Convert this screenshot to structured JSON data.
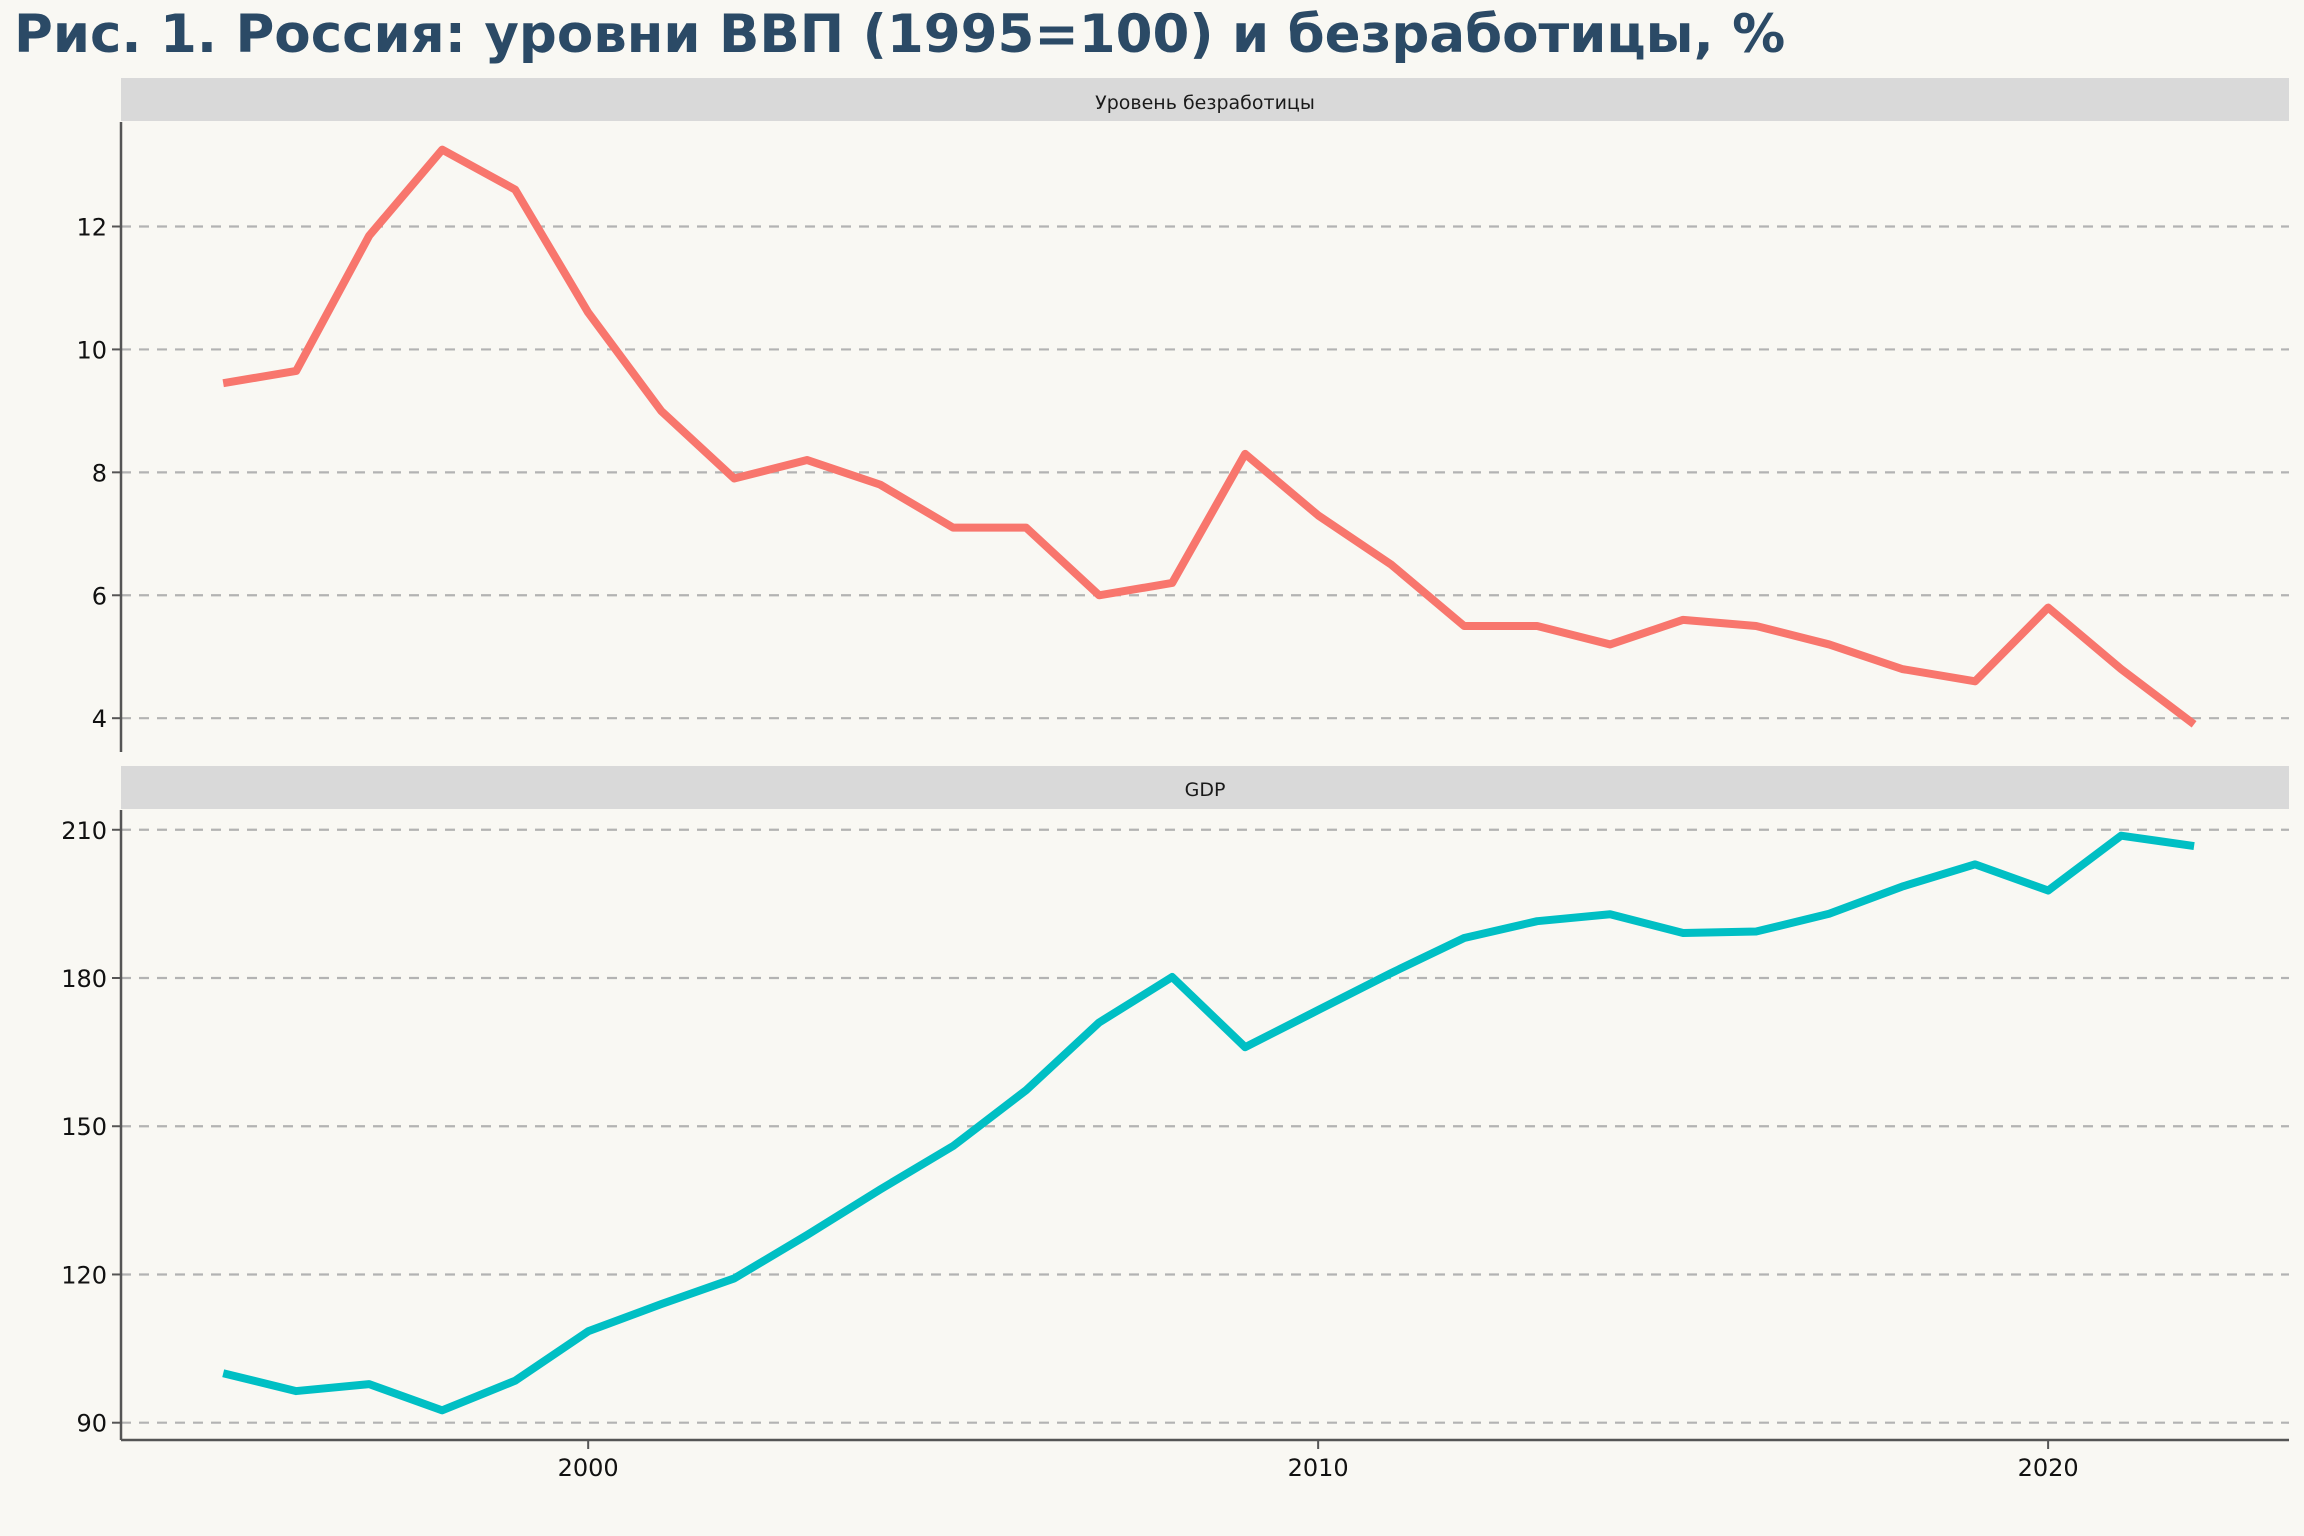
{
  "chart_data": {
    "type": "line",
    "title": "Рис. 1. Россия: уровни ВВП (1995=100) и безработицы, %",
    "xlim": [
      1993.6,
      2023.3
    ],
    "x_ticks": [
      2000,
      2010,
      2020
    ],
    "panels": [
      {
        "name": "Уровень безработицы",
        "color": "#f8766d",
        "ylim": [
          3.45,
          13.7
        ],
        "y_ticks": [
          4,
          6,
          8,
          10,
          12
        ],
        "x": [
          1995,
          1996,
          1997,
          1998,
          1999,
          2000,
          2001,
          2002,
          2003,
          2004,
          2005,
          2006,
          2007,
          2008,
          2009,
          2010,
          2011,
          2012,
          2013,
          2014,
          2015,
          2016,
          2017,
          2018,
          2019,
          2020,
          2021,
          2022
        ],
        "values": [
          9.45,
          9.65,
          11.85,
          13.25,
          12.6,
          10.6,
          9.0,
          7.9,
          8.2,
          7.8,
          7.1,
          7.1,
          6.0,
          6.2,
          8.3,
          7.3,
          6.5,
          5.5,
          5.5,
          5.2,
          5.6,
          5.5,
          5.2,
          4.8,
          4.6,
          5.8,
          4.8,
          3.9
        ]
      },
      {
        "name": "GDP",
        "color": "#00bfc4",
        "ylim": [
          86.5,
          214
        ],
        "y_ticks": [
          90,
          120,
          150,
          180,
          210
        ],
        "x": [
          1995,
          1996,
          1997,
          1998,
          1999,
          2000,
          2001,
          2002,
          2003,
          2004,
          2005,
          2006,
          2007,
          2008,
          2009,
          2010,
          2011,
          2012,
          2013,
          2014,
          2015,
          2016,
          2017,
          2018,
          2019,
          2020,
          2021,
          2022
        ],
        "values": [
          100,
          96.4,
          97.8,
          92.5,
          98.5,
          108.5,
          114,
          119.2,
          128,
          137.2,
          146,
          157.3,
          171,
          180.2,
          166,
          173.5,
          181,
          188.1,
          191.5,
          192.9,
          189.1,
          189.4,
          193,
          198.5,
          203,
          197.7,
          208.8,
          206.7
        ]
      }
    ]
  }
}
